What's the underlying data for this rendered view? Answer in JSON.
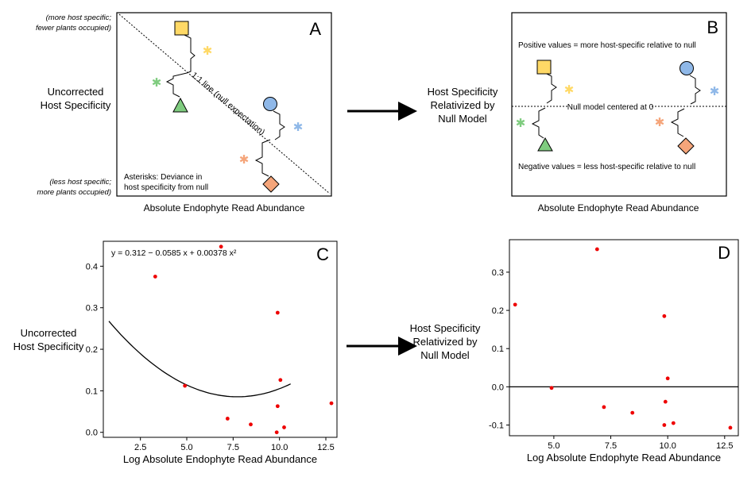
{
  "panel_a": {
    "letter": "A",
    "left_top_line1": "(more host specific;",
    "left_top_line2": "fewer plants occupied)",
    "left_mid_line1": "Uncorrected",
    "left_mid_line2": "Host Specificity",
    "left_bot_line1": "(less host specific;",
    "left_bot_line2": "more plants occupied)",
    "diag_label": "1:1 line  (null expectation)",
    "asterisk_note_line1": "Asterisks: Deviance in",
    "asterisk_note_line2": "host specificity from null",
    "xlabel": "Absolute Endophyte Read Abundance"
  },
  "middle_text": {
    "line1": "Host Specificity",
    "line2": "Relativized by",
    "line3": "Null Model"
  },
  "panel_b": {
    "letter": "B",
    "top_note": "Positive values = more host-specific relative to null",
    "center_note": "Null model centered at 0",
    "bottom_note": "Negative values = less host-specific relative to null",
    "xlabel": "Absolute Endophyte Read Abundance"
  },
  "panel_c_side": {
    "line1": "Uncorrected",
    "line2": "Host Specificity"
  },
  "panel_d_side": {
    "line1": "Host Specificity",
    "line2": "Relativized by",
    "line3": "Null Model"
  },
  "colors": {
    "square": "#FFD966",
    "triangle": "#7FCC7F",
    "circle": "#8FB8E8",
    "diamond": "#F5A57A",
    "point": "#ee0000"
  },
  "chart_data": [
    {
      "type": "scatter",
      "letter": "C",
      "xlabel": "Log Absolute Endophyte Read Abundance",
      "ylabel": "",
      "xlim": [
        0.5,
        13.1
      ],
      "ylim": [
        -0.012,
        0.46
      ],
      "xticks": [
        2.5,
        5.0,
        7.5,
        10.0,
        12.5
      ],
      "xtick_labels": [
        "2.5",
        "5.0",
        "7.5",
        "10.0",
        "12.5"
      ],
      "yticks": [
        0.0,
        0.1,
        0.2,
        0.3,
        0.4
      ],
      "ytick_labels": [
        "0.0",
        "0.1",
        "0.2",
        "0.3",
        "0.4"
      ],
      "grid": false,
      "equation": "y = 0.312 − 0.0585 x + 0.00378 x²",
      "fit": {
        "a": 0.312,
        "b": -0.0585,
        "c": 0.00378,
        "x_from": 0.8,
        "x_to": 10.6
      },
      "points": [
        {
          "x": 3.3,
          "y": 0.375
        },
        {
          "x": 4.9,
          "y": 0.112
        },
        {
          "x": 6.85,
          "y": 0.447
        },
        {
          "x": 7.2,
          "y": 0.033
        },
        {
          "x": 8.45,
          "y": 0.019
        },
        {
          "x": 9.9,
          "y": 0.288
        },
        {
          "x": 10.05,
          "y": 0.126
        },
        {
          "x": 9.9,
          "y": 0.063
        },
        {
          "x": 10.25,
          "y": 0.012
        },
        {
          "x": 9.85,
          "y": 0.0
        },
        {
          "x": 12.8,
          "y": 0.07
        }
      ]
    },
    {
      "type": "scatter",
      "letter": "D",
      "xlabel": "Log Absolute Endophyte Read Abundance",
      "ylabel": "",
      "xlim": [
        3.05,
        13.1
      ],
      "ylim": [
        -0.128,
        0.385
      ],
      "xticks": [
        5.0,
        7.5,
        10.0,
        12.5
      ],
      "xtick_labels": [
        "5.0",
        "7.5",
        "10.0",
        "12.5"
      ],
      "yticks": [
        -0.1,
        0.0,
        0.1,
        0.2,
        0.3
      ],
      "ytick_labels": [
        "-0.1",
        "0.0",
        "0.1",
        "0.2",
        "0.3"
      ],
      "grid": false,
      "zero_line": true,
      "points": [
        {
          "x": 3.3,
          "y": 0.215
        },
        {
          "x": 4.9,
          "y": -0.003
        },
        {
          "x": 6.9,
          "y": 0.36
        },
        {
          "x": 7.2,
          "y": -0.053
        },
        {
          "x": 8.45,
          "y": -0.068
        },
        {
          "x": 9.85,
          "y": 0.185
        },
        {
          "x": 10.0,
          "y": 0.022
        },
        {
          "x": 9.9,
          "y": -0.039
        },
        {
          "x": 10.25,
          "y": -0.095
        },
        {
          "x": 9.85,
          "y": -0.1
        },
        {
          "x": 12.75,
          "y": -0.107
        }
      ]
    }
  ]
}
